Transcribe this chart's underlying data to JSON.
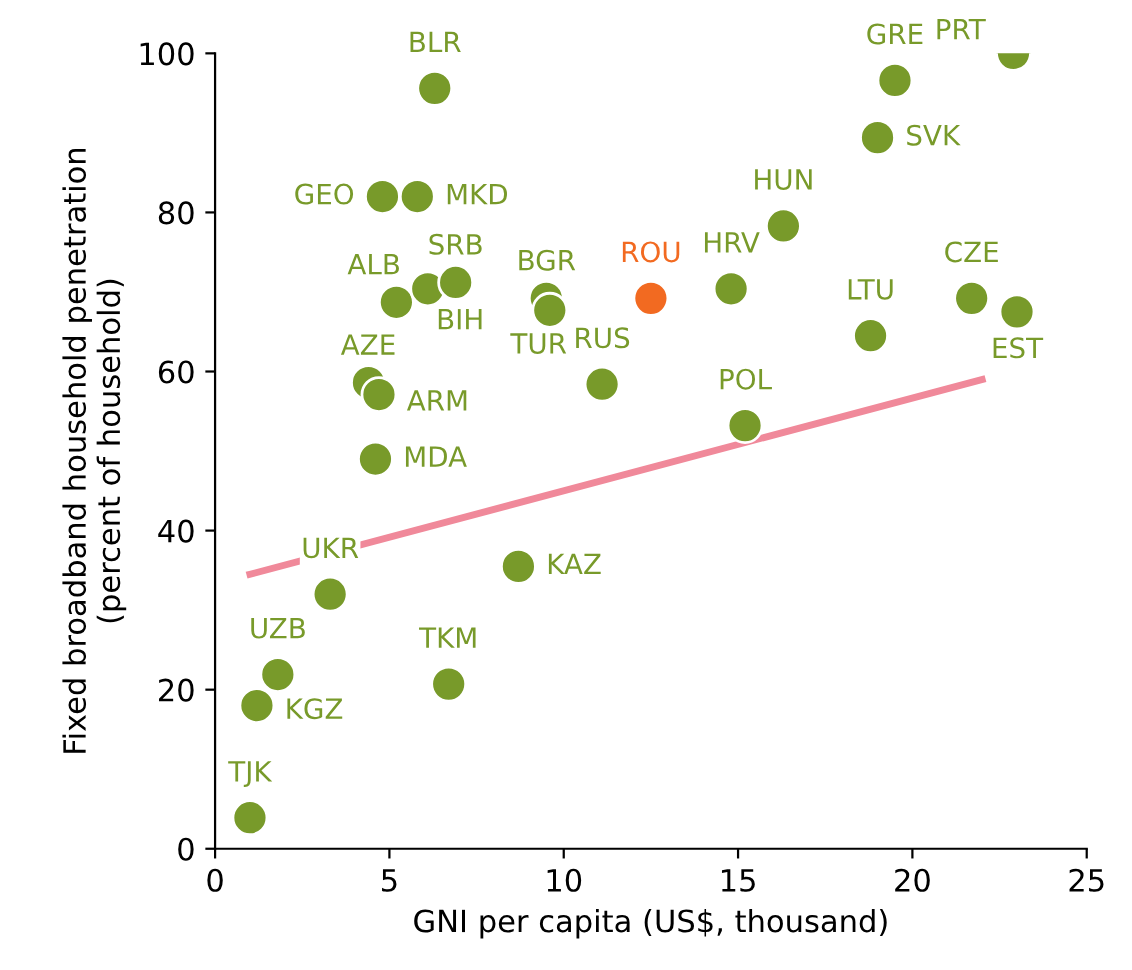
{
  "chart_data": {
    "type": "scatter",
    "xlabel": "GNI per capita (US$, thousand)",
    "ylabel": "Fixed broadband household penetration\n(percent of household)",
    "xlim": [
      0,
      25
    ],
    "ylim": [
      0,
      100
    ],
    "xticks": [
      0,
      5,
      10,
      15,
      20,
      25
    ],
    "yticks": [
      0,
      20,
      40,
      60,
      80,
      100
    ],
    "grid": false,
    "series": [
      {
        "marker": "circle",
        "x": [
          6.3,
          4.8,
          5.8,
          5.2,
          6.1,
          6.9,
          9.5,
          9.6,
          12.5,
          11.1,
          14.8,
          16.3,
          19.5,
          19.0,
          22.9,
          21.7,
          23.0,
          18.8,
          15.2,
          4.4,
          4.7,
          4.6,
          3.3,
          8.7,
          6.7,
          1.8,
          1.2,
          1.0
        ],
        "values": [
          95.6,
          82,
          82,
          68.7,
          70.4,
          71.2,
          69.2,
          67.7,
          69.2,
          58.4,
          70.4,
          78.3,
          96.6,
          89.4,
          100,
          69.2,
          67.5,
          64.5,
          53.2,
          58.6,
          57.1,
          49,
          32,
          35.5,
          20.7,
          21.9,
          18,
          3.9
        ],
        "colors": [
          "#789a2a",
          "#789a2a",
          "#789a2a",
          "#789a2a",
          "#789a2a",
          "#789a2a",
          "#789a2a",
          "#789a2a",
          "#f26a21",
          "#789a2a",
          "#789a2a",
          "#789a2a",
          "#789a2a",
          "#789a2a",
          "#789a2a",
          "#789a2a",
          "#789a2a",
          "#789a2a",
          "#789a2a",
          "#789a2a",
          "#789a2a",
          "#789a2a",
          "#789a2a",
          "#789a2a",
          "#789a2a",
          "#789a2a",
          "#789a2a",
          "#789a2a"
        ]
      },
      {
        "type": "line",
        "x": [
          1.0,
          22.0
        ],
        "values": [
          34.5,
          59.0
        ],
        "color": "#f0899a",
        "line_style": "solid"
      }
    ],
    "annotations": [
      {
        "text": "BLR",
        "x": 6.3,
        "y": 95.6
      },
      {
        "text": "GEO",
        "x": 4.8,
        "y": 82
      },
      {
        "text": "MKD",
        "x": 5.8,
        "y": 82
      },
      {
        "text": "ALB",
        "x": 5.2,
        "y": 68.7
      },
      {
        "text": "BIH",
        "x": 6.1,
        "y": 70.4
      },
      {
        "text": "SRB",
        "x": 6.9,
        "y": 71.2
      },
      {
        "text": "BGR",
        "x": 9.5,
        "y": 69.2
      },
      {
        "text": "TUR",
        "x": 9.6,
        "y": 67.7
      },
      {
        "text": "ROU",
        "x": 12.5,
        "y": 69.2
      },
      {
        "text": "RUS",
        "x": 11.1,
        "y": 58.4
      },
      {
        "text": "HRV",
        "x": 14.8,
        "y": 70.4
      },
      {
        "text": "HUN",
        "x": 16.3,
        "y": 78.3
      },
      {
        "text": "GRE",
        "x": 19.5,
        "y": 96.6
      },
      {
        "text": "SVK",
        "x": 19.0,
        "y": 89.4
      },
      {
        "text": "PRT",
        "x": 22.9,
        "y": 100
      },
      {
        "text": "CZE",
        "x": 21.7,
        "y": 69.2
      },
      {
        "text": "EST",
        "x": 23.0,
        "y": 67.5
      },
      {
        "text": "LTU",
        "x": 18.8,
        "y": 64.5
      },
      {
        "text": "POL",
        "x": 15.2,
        "y": 53.2
      },
      {
        "text": "AZE",
        "x": 4.4,
        "y": 58.6
      },
      {
        "text": "ARM",
        "x": 4.7,
        "y": 57.1
      },
      {
        "text": "MDA",
        "x": 4.6,
        "y": 49
      },
      {
        "text": "UKR",
        "x": 3.3,
        "y": 32
      },
      {
        "text": "KAZ",
        "x": 8.7,
        "y": 35.5
      },
      {
        "text": "TKM",
        "x": 6.7,
        "y": 20.7
      },
      {
        "text": "UZB",
        "x": 1.8,
        "y": 21.9
      },
      {
        "text": "KGZ",
        "x": 1.2,
        "y": 18
      },
      {
        "text": "TJK",
        "x": 1.0,
        "y": 3.9
      }
    ]
  }
}
